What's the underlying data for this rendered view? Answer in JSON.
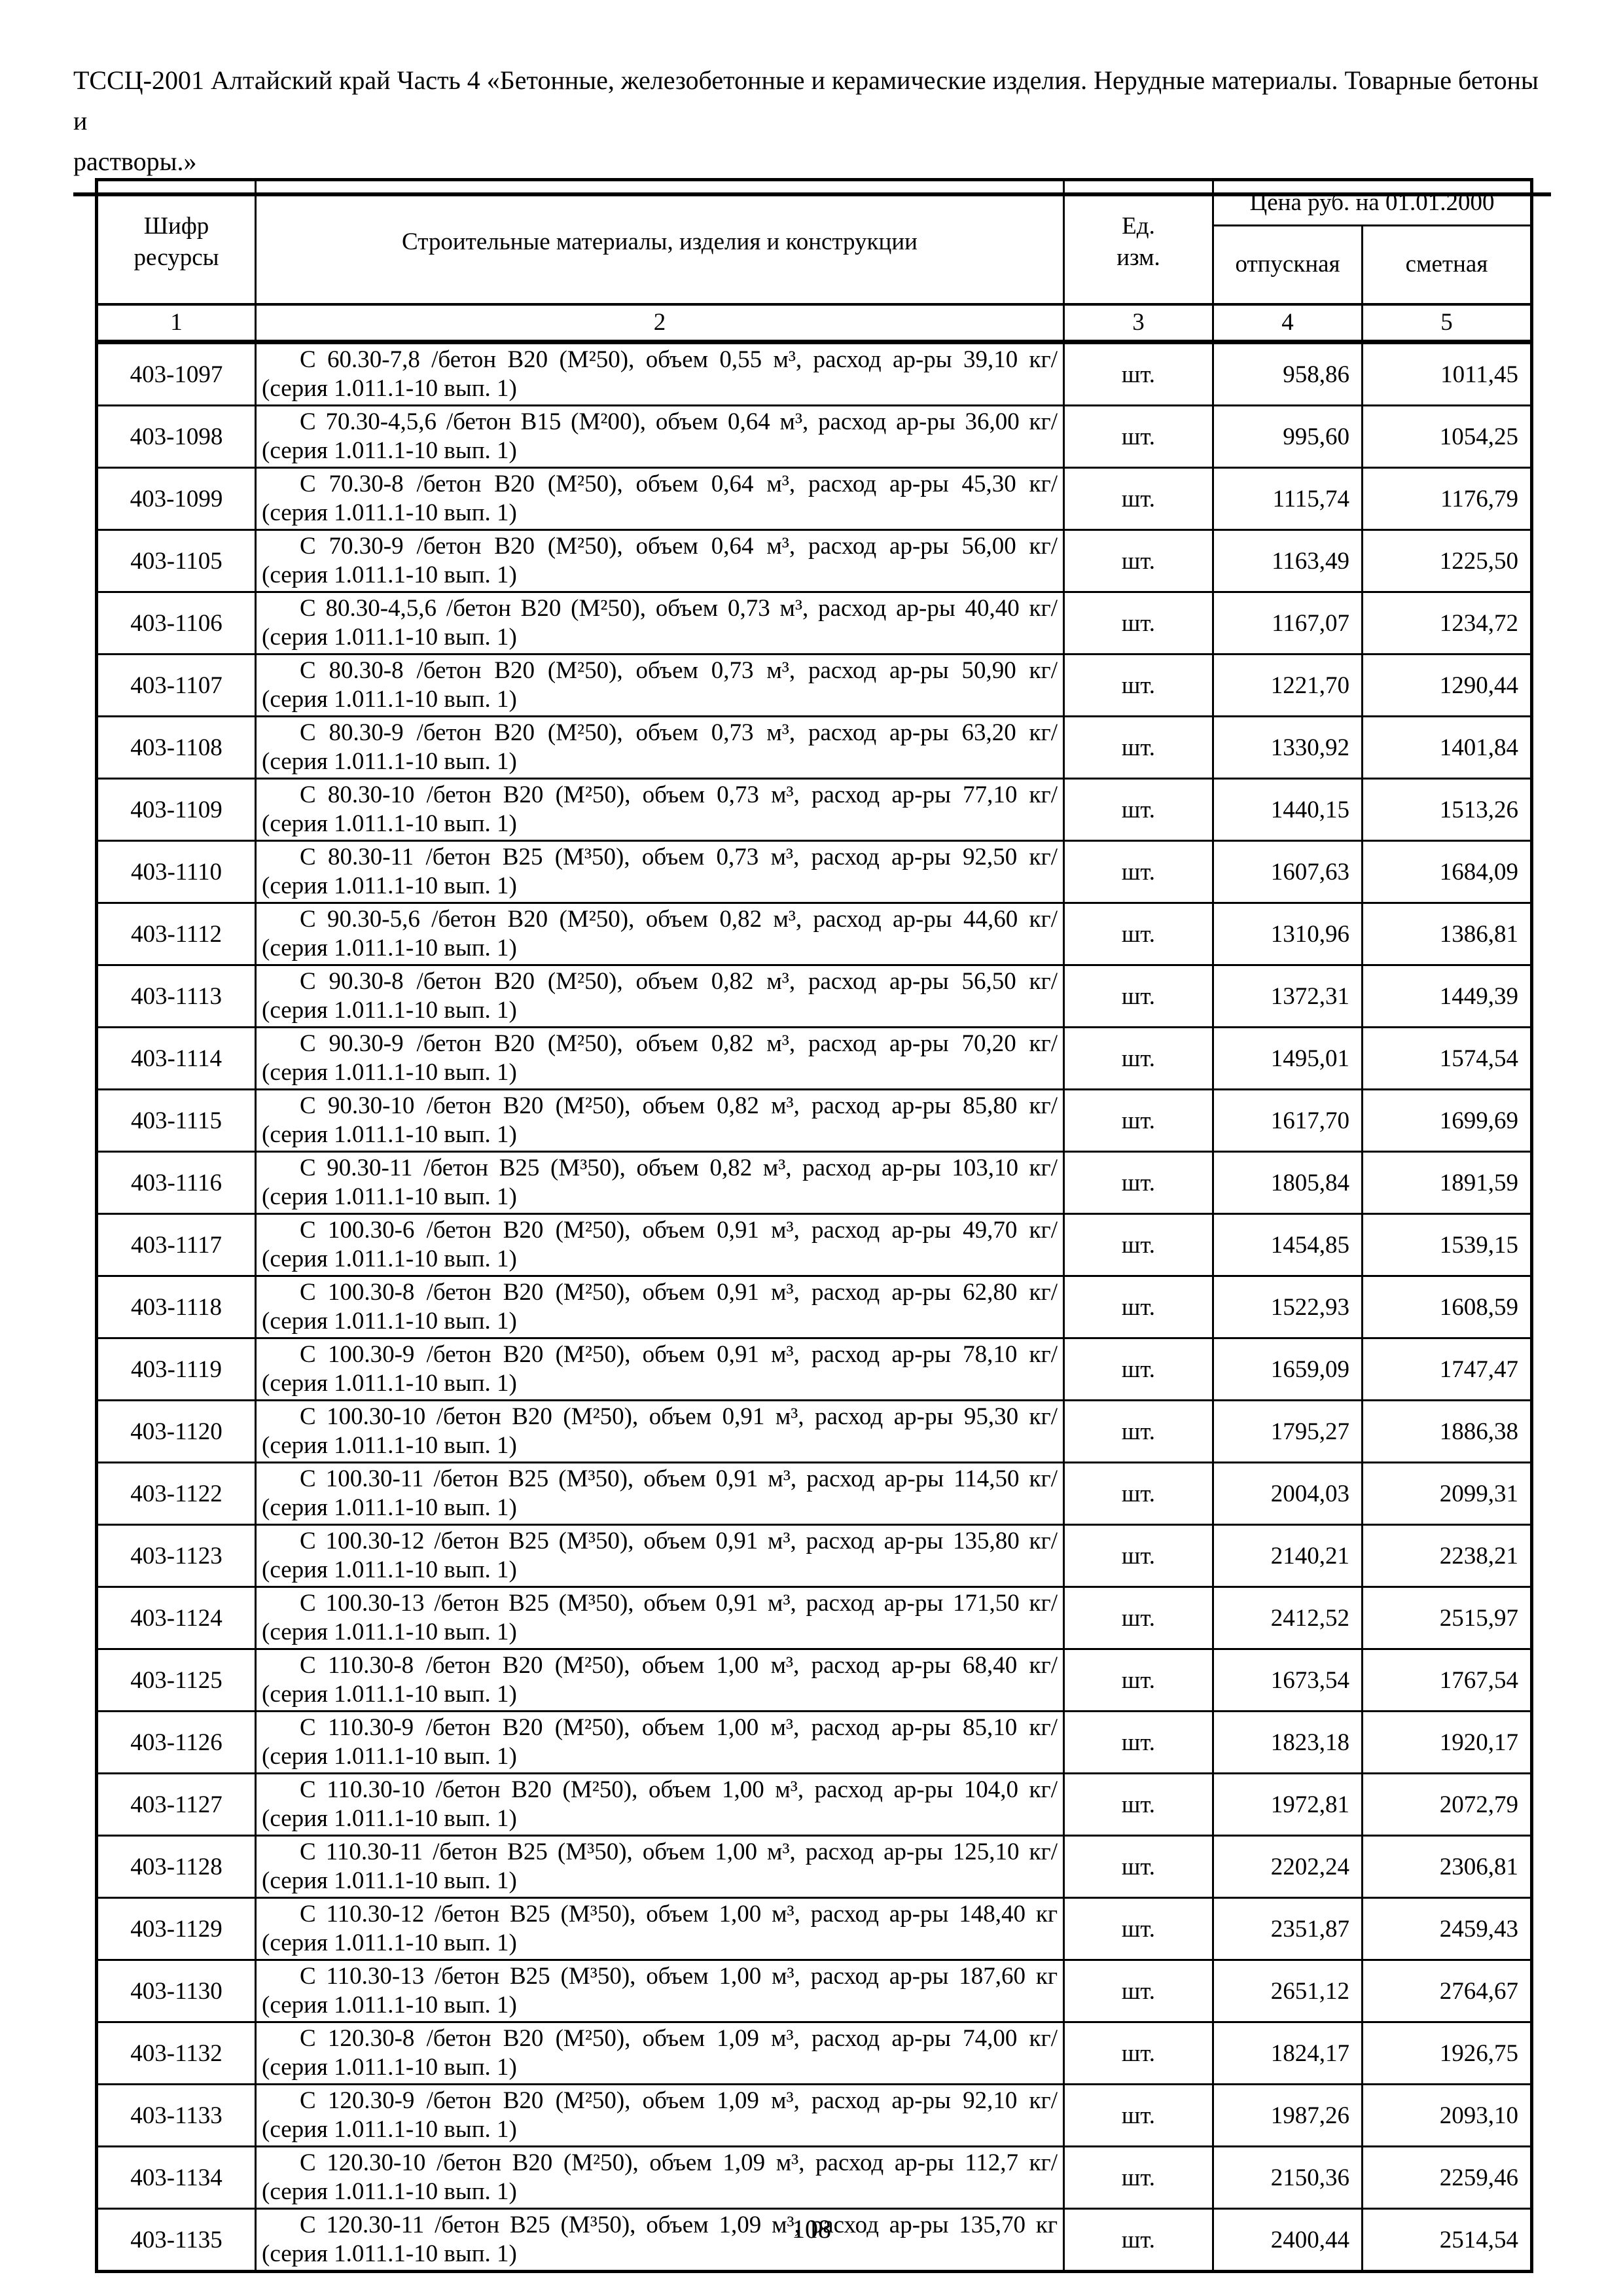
{
  "page": {
    "header_line1": "ТССЦ-2001 Алтайский край Часть 4 «Бетонные, железобетонные и керамические изделия. Нерудные материалы. Товарные бетоны и",
    "header_line2": "растворы.»",
    "page_number": "108"
  },
  "table": {
    "columns": {
      "code": "Шифр\nресурсы",
      "materials": "Строительные материалы, изделия и конструкции",
      "unit": "Ед.\nизм.",
      "price_group": "Цена руб. на 01.01.2000",
      "price_release": "отпускная",
      "price_estimate": "сметная"
    },
    "column_numbers": [
      "1",
      "2",
      "3",
      "4",
      "5"
    ],
    "rows": [
      {
        "code": "403-1097",
        "desc1": "С 60.30-7,8 /бетон В20 (М²50), объем 0,55 м³, расход ар-ры 39,10 кг/",
        "desc2": "(серия 1.011.1-10 вып. 1)",
        "unit": "шт.",
        "price_release": "958,86",
        "price_estimate": "1011,45"
      },
      {
        "code": "403-1098",
        "desc1": "С 70.30-4,5,6 /бетон В15 (М²00), объем 0,64 м³, расход ар-ры 36,00 кг/",
        "desc2": "(серия 1.011.1-10 вып. 1)",
        "unit": "шт.",
        "price_release": "995,60",
        "price_estimate": "1054,25"
      },
      {
        "code": "403-1099",
        "desc1": "С 70.30-8 /бетон В20 (М²50), объем 0,64 м³, расход ар-ры 45,30 кг/",
        "desc2": "(серия 1.011.1-10 вып. 1)",
        "unit": "шт.",
        "price_release": "1115,74",
        "price_estimate": "1176,79"
      },
      {
        "code": "403-1105",
        "desc1": "С 70.30-9 /бетон В20 (М²50), объем 0,64 м³, расход ар-ры 56,00 кг/",
        "desc2": "(серия 1.011.1-10 вып. 1)",
        "unit": "шт.",
        "price_release": "1163,49",
        "price_estimate": "1225,50"
      },
      {
        "code": "403-1106",
        "desc1": "С 80.30-4,5,6 /бетон В20 (М²50), объем 0,73 м³, расход ар-ры 40,40 кг/",
        "desc2": "(серия 1.011.1-10 вып. 1)",
        "unit": "шт.",
        "price_release": "1167,07",
        "price_estimate": "1234,72"
      },
      {
        "code": "403-1107",
        "desc1": "С 80.30-8 /бетон В20 (М²50), объем 0,73 м³, расход ар-ры 50,90 кг/",
        "desc2": "(серия 1.011.1-10 вып. 1)",
        "unit": "шт.",
        "price_release": "1221,70",
        "price_estimate": "1290,44"
      },
      {
        "code": "403-1108",
        "desc1": "С 80.30-9 /бетон В20 (М²50), объем 0,73 м³, расход ар-ры 63,20 кг/",
        "desc2": "(серия 1.011.1-10 вып. 1)",
        "unit": "шт.",
        "price_release": "1330,92",
        "price_estimate": "1401,84"
      },
      {
        "code": "403-1109",
        "desc1": "С 80.30-10 /бетон В20 (М²50), объем 0,73 м³, расход ар-ры 77,10 кг/",
        "desc2": "(серия 1.011.1-10 вып. 1)",
        "unit": "шт.",
        "price_release": "1440,15",
        "price_estimate": "1513,26"
      },
      {
        "code": "403-1110",
        "desc1": "С 80.30-11 /бетон В25 (М³50), объем 0,73 м³, расход ар-ры 92,50 кг/",
        "desc2": "(серия 1.011.1-10 вып. 1)",
        "unit": "шт.",
        "price_release": "1607,63",
        "price_estimate": "1684,09"
      },
      {
        "code": "403-1112",
        "desc1": "С 90.30-5,6 /бетон В20 (М²50), объем 0,82 м³, расход ар-ры 44,60 кг/",
        "desc2": "(серия 1.011.1-10 вып. 1)",
        "unit": "шт.",
        "price_release": "1310,96",
        "price_estimate": "1386,81"
      },
      {
        "code": "403-1113",
        "desc1": "С 90.30-8 /бетон В20 (М²50), объем 0,82 м³, расход ар-ры 56,50 кг/",
        "desc2": "(серия 1.011.1-10 вып. 1)",
        "unit": "шт.",
        "price_release": "1372,31",
        "price_estimate": "1449,39"
      },
      {
        "code": "403-1114",
        "desc1": "С 90.30-9 /бетон В20 (М²50), объем 0,82 м³, расход ар-ры 70,20 кг/",
        "desc2": "(серия 1.011.1-10 вып. 1)",
        "unit": "шт.",
        "price_release": "1495,01",
        "price_estimate": "1574,54"
      },
      {
        "code": "403-1115",
        "desc1": "С 90.30-10 /бетон В20 (М²50), объем 0,82 м³, расход ар-ры 85,80 кг/",
        "desc2": "(серия 1.011.1-10 вып. 1)",
        "unit": "шт.",
        "price_release": "1617,70",
        "price_estimate": "1699,69"
      },
      {
        "code": "403-1116",
        "desc1": "С 90.30-11 /бетон В25 (М³50), объем 0,82 м³, расход ар-ры 103,10 кг/",
        "desc2": "(серия 1.011.1-10 вып. 1)",
        "unit": "шт.",
        "price_release": "1805,84",
        "price_estimate": "1891,59"
      },
      {
        "code": "403-1117",
        "desc1": "С 100.30-6 /бетон В20 (М²50), объем 0,91 м³, расход ар-ры 49,70 кг/",
        "desc2": "(серия 1.011.1-10 вып. 1)",
        "unit": "шт.",
        "price_release": "1454,85",
        "price_estimate": "1539,15"
      },
      {
        "code": "403-1118",
        "desc1": "С 100.30-8 /бетон В20 (М²50), объем 0,91 м³, расход ар-ры 62,80 кг/",
        "desc2": "(серия 1.011.1-10 вып. 1)",
        "unit": "шт.",
        "price_release": "1522,93",
        "price_estimate": "1608,59"
      },
      {
        "code": "403-1119",
        "desc1": "С 100.30-9 /бетон В20 (М²50), объем 0,91 м³, расход ар-ры 78,10 кг/",
        "desc2": "(серия 1.011.1-10 вып. 1)",
        "unit": "шт.",
        "price_release": "1659,09",
        "price_estimate": "1747,47"
      },
      {
        "code": "403-1120",
        "desc1": "С 100.30-10 /бетон В20 (М²50), объем 0,91 м³, расход ар-ры 95,30 кг/",
        "desc2": "(серия 1.011.1-10 вып. 1)",
        "unit": "шт.",
        "price_release": "1795,27",
        "price_estimate": "1886,38"
      },
      {
        "code": "403-1122",
        "desc1": "С 100.30-11 /бетон В25 (М³50), объем 0,91 м³, расход ар-ры 114,50 кг/",
        "desc2": "(серия 1.011.1-10 вып. 1)",
        "unit": "шт.",
        "price_release": "2004,03",
        "price_estimate": "2099,31"
      },
      {
        "code": "403-1123",
        "desc1": "С 100.30-12 /бетон В25 (М³50), объем 0,91 м³, расход ар-ры 135,80 кг/",
        "desc2": "(серия 1.011.1-10 вып. 1)",
        "unit": "шт.",
        "price_release": "2140,21",
        "price_estimate": "2238,21"
      },
      {
        "code": "403-1124",
        "desc1": "С 100.30-13 /бетон В25 (М³50), объем 0,91 м³, расход ар-ры 171,50 кг/",
        "desc2": "(серия 1.011.1-10 вып. 1)",
        "unit": "шт.",
        "price_release": "2412,52",
        "price_estimate": "2515,97"
      },
      {
        "code": "403-1125",
        "desc1": "С 110.30-8 /бетон В20 (М²50), объем 1,00 м³, расход ар-ры 68,40 кг/",
        "desc2": "(серия 1.011.1-10 вып. 1)",
        "unit": "шт.",
        "price_release": "1673,54",
        "price_estimate": "1767,54"
      },
      {
        "code": "403-1126",
        "desc1": "С 110.30-9 /бетон В20 (М²50), объем 1,00 м³, расход ар-ры 85,10 кг/",
        "desc2": "(серия 1.011.1-10 вып. 1)",
        "unit": "шт.",
        "price_release": "1823,18",
        "price_estimate": "1920,17"
      },
      {
        "code": "403-1127",
        "desc1": "С 110.30-10 /бетон В20 (М²50), объем 1,00 м³, расход ар-ры 104,0 кг/",
        "desc2": "(серия 1.011.1-10 вып. 1)",
        "unit": "шт.",
        "price_release": "1972,81",
        "price_estimate": "2072,79"
      },
      {
        "code": "403-1128",
        "desc1": "С 110.30-11 /бетон В25 (М³50), объем 1,00 м³, расход ар-ры 125,10 кг/",
        "desc2": "(серия 1.011.1-10 вып. 1)",
        "unit": "шт.",
        "price_release": "2202,24",
        "price_estimate": "2306,81"
      },
      {
        "code": "403-1129",
        "desc1": "С 110.30-12 /бетон В25 (М³50), объем 1,00 м³, расход ар-ры 148,40 кг",
        "desc2": "(серия 1.011.1-10 вып. 1)",
        "unit": "шт.",
        "price_release": "2351,87",
        "price_estimate": "2459,43"
      },
      {
        "code": "403-1130",
        "desc1": "С 110.30-13 /бетон В25 (М³50), объем 1,00 м³, расход ар-ры 187,60 кг",
        "desc2": "(серия 1.011.1-10 вып. 1)",
        "unit": "шт.",
        "price_release": "2651,12",
        "price_estimate": "2764,67"
      },
      {
        "code": "403-1132",
        "desc1": "С 120.30-8 /бетон В20 (М²50), объем 1,09 м³, расход ар-ры 74,00 кг/",
        "desc2": "(серия 1.011.1-10 вып. 1)",
        "unit": "шт.",
        "price_release": "1824,17",
        "price_estimate": "1926,75"
      },
      {
        "code": "403-1133",
        "desc1": "С 120.30-9 /бетон В20 (М²50), объем 1,09 м³, расход ар-ры 92,10 кг/",
        "desc2": "(серия 1.011.1-10 вып. 1)",
        "unit": "шт.",
        "price_release": "1987,26",
        "price_estimate": "2093,10"
      },
      {
        "code": "403-1134",
        "desc1": "С 120.30-10 /бетон В20 (М²50), объем 1,09 м³, расход ар-ры 112,7 кг/",
        "desc2": "(серия 1.011.1-10 вып. 1)",
        "unit": "шт.",
        "price_release": "2150,36",
        "price_estimate": "2259,46"
      },
      {
        "code": "403-1135",
        "desc1": "С 120.30-11 /бетон В25 (М³50), объем 1,09 м³, расход ар-ры 135,70 кг",
        "desc2": "(серия 1.011.1-10 вып. 1)",
        "unit": "шт.",
        "price_release": "2400,44",
        "price_estimate": "2514,54"
      }
    ]
  }
}
